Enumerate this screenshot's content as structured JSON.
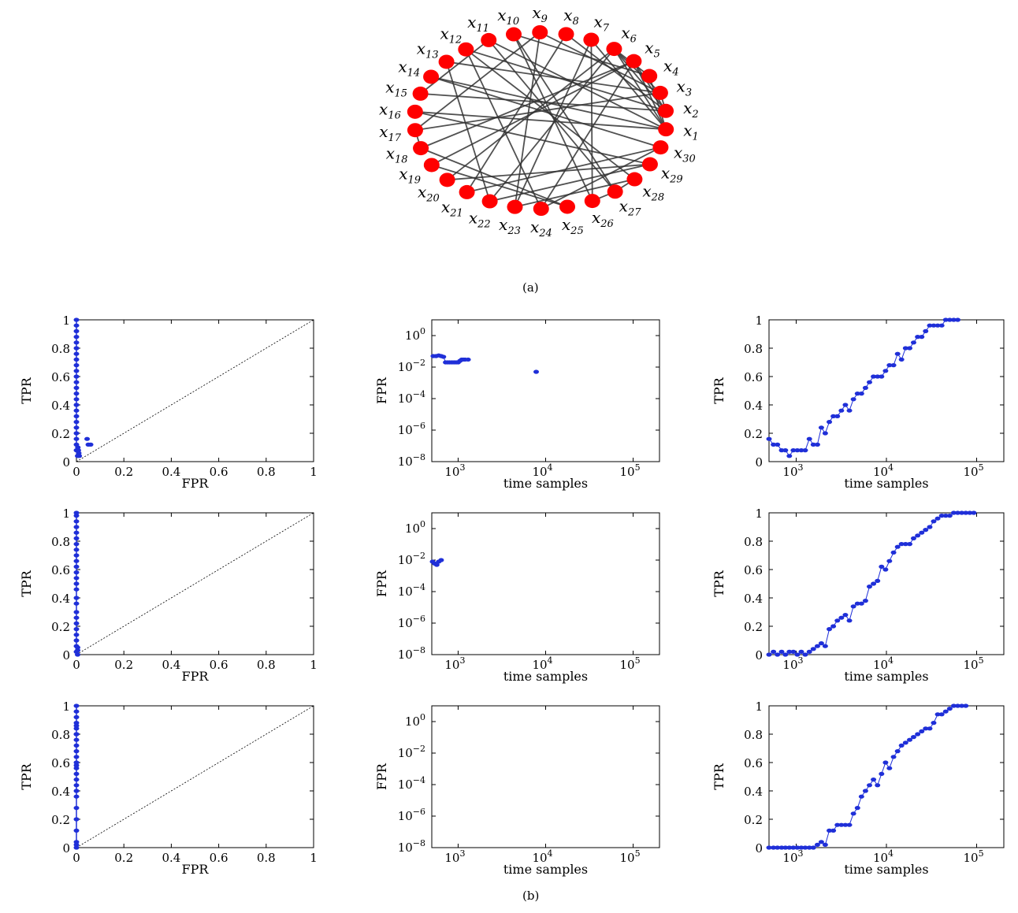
{
  "figure": {
    "caption_a": "(a)",
    "caption_b": "(b)"
  },
  "network": {
    "nodes": [
      "x1",
      "x2",
      "x3",
      "x4",
      "x5",
      "x6",
      "x7",
      "x8",
      "x9",
      "x10",
      "x11",
      "x12",
      "x13",
      "x14",
      "x15",
      "x16",
      "x17",
      "x18",
      "x19",
      "x20",
      "x21",
      "x22",
      "x23",
      "x24",
      "x25",
      "x26",
      "x27",
      "x28",
      "x29",
      "x30"
    ],
    "node_color": "#ff0000",
    "edge_color": "#333333",
    "edges": [
      [
        1,
        5
      ],
      [
        1,
        6
      ],
      [
        1,
        7
      ],
      [
        1,
        11
      ],
      [
        1,
        14
      ],
      [
        1,
        16
      ],
      [
        1,
        4
      ],
      [
        2,
        5
      ],
      [
        2,
        6
      ],
      [
        2,
        8
      ],
      [
        2,
        12
      ],
      [
        2,
        15
      ],
      [
        2,
        3
      ],
      [
        3,
        6
      ],
      [
        3,
        9
      ],
      [
        3,
        13
      ],
      [
        3,
        17
      ],
      [
        4,
        6
      ],
      [
        4,
        10
      ],
      [
        5,
        19
      ],
      [
        5,
        24
      ],
      [
        5,
        18
      ],
      [
        6,
        20
      ],
      [
        6,
        22
      ],
      [
        7,
        23
      ],
      [
        7,
        26
      ],
      [
        8,
        21
      ],
      [
        9,
        17
      ],
      [
        10,
        26
      ],
      [
        11,
        27
      ],
      [
        11,
        15
      ],
      [
        12,
        28
      ],
      [
        13,
        22
      ],
      [
        14,
        30
      ],
      [
        16,
        29
      ],
      [
        17,
        18
      ],
      [
        18,
        25
      ],
      [
        20,
        29
      ],
      [
        21,
        30
      ],
      [
        26,
        27
      ],
      [
        27,
        28
      ],
      [
        19,
        25
      ],
      [
        23,
        28
      ],
      [
        24,
        30
      ],
      [
        22,
        29
      ],
      [
        12,
        24
      ],
      [
        10,
        27
      ],
      [
        9,
        23
      ]
    ]
  },
  "chart_data": [
    {
      "type": "scatter",
      "row": 0,
      "col": 0,
      "xlabel": "FPR",
      "ylabel": "TPR",
      "xlim": [
        0,
        1
      ],
      "ylim": [
        0,
        1
      ],
      "xticks": [
        "0",
        "0.2",
        "0.4",
        "0.6",
        "0.8",
        "1"
      ],
      "yticks": [
        "0",
        "0.2",
        "0.4",
        "0.6",
        "0.8",
        "1"
      ],
      "diagonal": true,
      "x": [
        0,
        0,
        0,
        0,
        0,
        0,
        0,
        0,
        0,
        0,
        0,
        0,
        0,
        0,
        0,
        0,
        0,
        0,
        0,
        0,
        0,
        0,
        0,
        0,
        0.005,
        0.008,
        0.01,
        0.012,
        0.006,
        0.045,
        0.05,
        0.06
      ],
      "y": [
        1,
        0.96,
        0.92,
        0.88,
        0.84,
        0.8,
        0.76,
        0.72,
        0.68,
        0.64,
        0.6,
        0.56,
        0.52,
        0.48,
        0.44,
        0.4,
        0.36,
        0.32,
        0.28,
        0.24,
        0.2,
        0.16,
        0.12,
        0.08,
        0.04,
        0.08,
        0.06,
        0.04,
        0.1,
        0.16,
        0.12,
        0.12
      ]
    },
    {
      "type": "scatter",
      "row": 0,
      "col": 1,
      "xlabel": "time samples",
      "ylabel": "FPR",
      "xscale": "log",
      "yscale": "log",
      "xlim": [
        500,
        200000
      ],
      "ylim": [
        1e-08,
        10
      ],
      "xticks": [
        {
          "v": 1000,
          "e": "3"
        },
        {
          "v": 10000,
          "e": "4"
        },
        {
          "v": 100000,
          "e": "5"
        }
      ],
      "yticks": [
        {
          "v": 1,
          "e": "0"
        },
        {
          "v": 0.01,
          "e": "−2"
        },
        {
          "v": 0.0001,
          "e": "−4"
        },
        {
          "v": 1e-06,
          "e": "−6"
        },
        {
          "v": 1e-08,
          "e": "−8"
        }
      ],
      "x": [
        520,
        560,
        600,
        640,
        680,
        720,
        760,
        800,
        850,
        900,
        950,
        1000,
        1050,
        1100,
        1150,
        1200,
        1300,
        7800
      ],
      "y": [
        0.05,
        0.05,
        0.055,
        0.05,
        0.045,
        0.02,
        0.02,
        0.02,
        0.02,
        0.02,
        0.02,
        0.02,
        0.025,
        0.03,
        0.03,
        0.03,
        0.03,
        0.005
      ],
      "line_until": 16
    },
    {
      "type": "line",
      "row": 0,
      "col": 2,
      "xlabel": "time samples",
      "ylabel": "TPR",
      "xscale": "log",
      "xlim": [
        500,
        200000
      ],
      "ylim": [
        0,
        1
      ],
      "xticks": [
        {
          "v": 1000,
          "e": "3"
        },
        {
          "v": 10000,
          "e": "4"
        },
        {
          "v": 100000,
          "e": "5"
        }
      ],
      "yticks": [
        "0",
        "0.2",
        "0.4",
        "0.6",
        "0.8",
        "1"
      ],
      "x": [
        500,
        560,
        620,
        690,
        760,
        840,
        930,
        1030,
        1140,
        1260,
        1400,
        1550,
        1720,
        1900,
        2100,
        2330,
        2580,
        2860,
        3170,
        3510,
        3890,
        4310,
        4780,
        5290,
        5860,
        6490,
        7190,
        7970,
        8830,
        9780,
        10800,
        12000,
        13300,
        14700,
        16300,
        18100,
        20000,
        22200,
        24600,
        27200,
        30200,
        33400,
        37000,
        41000,
        45400,
        50300,
        55700,
        61700
      ],
      "y": [
        0.16,
        0.12,
        0.12,
        0.08,
        0.08,
        0.04,
        0.08,
        0.08,
        0.08,
        0.08,
        0.16,
        0.12,
        0.12,
        0.24,
        0.2,
        0.28,
        0.32,
        0.32,
        0.36,
        0.4,
        0.36,
        0.44,
        0.48,
        0.48,
        0.52,
        0.56,
        0.6,
        0.6,
        0.6,
        0.64,
        0.68,
        0.68,
        0.76,
        0.72,
        0.8,
        0.8,
        0.84,
        0.88,
        0.88,
        0.92,
        0.96,
        0.96,
        0.96,
        0.96,
        1,
        1,
        1,
        1
      ]
    },
    {
      "type": "scatter",
      "row": 1,
      "col": 0,
      "xlabel": "FPR",
      "ylabel": "TPR",
      "xlim": [
        0,
        1
      ],
      "ylim": [
        0,
        1
      ],
      "xticks": [
        "0",
        "0.2",
        "0.4",
        "0.6",
        "0.8",
        "1"
      ],
      "yticks": [
        "0",
        "0.2",
        "0.4",
        "0.6",
        "0.8",
        "1"
      ],
      "diagonal": true,
      "x": [
        0,
        0,
        0,
        0,
        0,
        0,
        0,
        0,
        0,
        0,
        0,
        0,
        0,
        0,
        0,
        0,
        0,
        0,
        0,
        0,
        0,
        0,
        0,
        0,
        0,
        0.005,
        0.005,
        0.005
      ],
      "y": [
        1,
        0.98,
        0.94,
        0.9,
        0.86,
        0.82,
        0.78,
        0.74,
        0.7,
        0.66,
        0.62,
        0.58,
        0.54,
        0.5,
        0.46,
        0.4,
        0.36,
        0.3,
        0.26,
        0.22,
        0.18,
        0.14,
        0.1,
        0.06,
        0.02,
        0,
        0.03,
        0.05
      ]
    },
    {
      "type": "scatter",
      "row": 1,
      "col": 1,
      "xlabel": "time samples",
      "ylabel": "FPR",
      "xscale": "log",
      "yscale": "log",
      "xlim": [
        500,
        200000
      ],
      "ylim": [
        1e-08,
        10
      ],
      "xticks": [
        {
          "v": 1000,
          "e": "3"
        },
        {
          "v": 10000,
          "e": "4"
        },
        {
          "v": 100000,
          "e": "5"
        }
      ],
      "yticks": [
        {
          "v": 1,
          "e": "0"
        },
        {
          "v": 0.01,
          "e": "−2"
        },
        {
          "v": 0.0001,
          "e": "−4"
        },
        {
          "v": 1e-06,
          "e": "−6"
        },
        {
          "v": 1e-08,
          "e": "−8"
        }
      ],
      "x": [
        510,
        540,
        570,
        600,
        640
      ],
      "y": [
        0.008,
        0.006,
        0.005,
        0.008,
        0.01
      ],
      "line_until": 4
    },
    {
      "type": "line",
      "row": 1,
      "col": 2,
      "xlabel": "time samples",
      "ylabel": "TPR",
      "xscale": "log",
      "xlim": [
        500,
        200000
      ],
      "ylim": [
        0,
        1
      ],
      "xticks": [
        {
          "v": 1000,
          "e": "3"
        },
        {
          "v": 10000,
          "e": "4"
        },
        {
          "v": 100000,
          "e": "5"
        }
      ],
      "yticks": [
        "0",
        "0.2",
        "0.4",
        "0.6",
        "0.8",
        "1"
      ],
      "x": [
        500,
        560,
        620,
        690,
        760,
        840,
        930,
        1030,
        1140,
        1260,
        1400,
        1550,
        1720,
        1900,
        2100,
        2330,
        2580,
        2860,
        3170,
        3510,
        3890,
        4310,
        4780,
        5290,
        5860,
        6490,
        7190,
        7970,
        8830,
        9780,
        10800,
        12000,
        13300,
        14700,
        16300,
        18100,
        20000,
        22200,
        24600,
        27200,
        30200,
        33400,
        37000,
        41000,
        45400,
        50300,
        55700,
        61700,
        68400,
        75800,
        84000,
        93000
      ],
      "y": [
        0,
        0.02,
        0,
        0.02,
        0,
        0.02,
        0.02,
        0,
        0.02,
        0,
        0.02,
        0.04,
        0.06,
        0.08,
        0.06,
        0.18,
        0.2,
        0.24,
        0.26,
        0.28,
        0.24,
        0.34,
        0.36,
        0.36,
        0.38,
        0.48,
        0.5,
        0.52,
        0.62,
        0.6,
        0.66,
        0.72,
        0.76,
        0.78,
        0.78,
        0.78,
        0.82,
        0.84,
        0.86,
        0.88,
        0.9,
        0.94,
        0.96,
        0.98,
        0.98,
        0.98,
        1,
        1,
        1,
        1,
        1,
        1
      ]
    },
    {
      "type": "scatter",
      "row": 2,
      "col": 0,
      "xlabel": "FPR",
      "ylabel": "TPR",
      "xlim": [
        0,
        1
      ],
      "ylim": [
        0,
        1
      ],
      "xticks": [
        "0",
        "0.2",
        "0.4",
        "0.6",
        "0.8",
        "1"
      ],
      "yticks": [
        "0",
        "0.2",
        "0.4",
        "0.6",
        "0.8",
        "1"
      ],
      "diagonal": true,
      "x": [
        0,
        0,
        0,
        0,
        0,
        0,
        0,
        0,
        0,
        0,
        0,
        0,
        0,
        0,
        0,
        0,
        0,
        0,
        0,
        0,
        0,
        0,
        0,
        0,
        0,
        0
      ],
      "y": [
        1,
        0.96,
        0.92,
        0.88,
        0.84,
        0.8,
        0.76,
        0.72,
        0.68,
        0.64,
        0.6,
        0.56,
        0.52,
        0.48,
        0.44,
        0.4,
        0.36,
        0.28,
        0.2,
        0.12,
        0.04,
        0.02,
        0,
        0.86,
        0.8,
        0.58
      ]
    },
    {
      "type": "scatter",
      "row": 2,
      "col": 1,
      "xlabel": "time samples",
      "ylabel": "FPR",
      "xscale": "log",
      "yscale": "log",
      "xlim": [
        500,
        200000
      ],
      "ylim": [
        1e-08,
        10
      ],
      "xticks": [
        {
          "v": 1000,
          "e": "3"
        },
        {
          "v": 10000,
          "e": "4"
        },
        {
          "v": 100000,
          "e": "5"
        }
      ],
      "yticks": [
        {
          "v": 1,
          "e": "0"
        },
        {
          "v": 0.01,
          "e": "−2"
        },
        {
          "v": 0.0001,
          "e": "−4"
        },
        {
          "v": 1e-06,
          "e": "−6"
        },
        {
          "v": 1e-08,
          "e": "−8"
        }
      ],
      "x": [],
      "y": [],
      "line_until": 0
    },
    {
      "type": "line",
      "row": 2,
      "col": 2,
      "xlabel": "time samples",
      "ylabel": "TPR",
      "xscale": "log",
      "xlim": [
        500,
        200000
      ],
      "ylim": [
        0,
        1
      ],
      "xticks": [
        {
          "v": 1000,
          "e": "3"
        },
        {
          "v": 10000,
          "e": "4"
        },
        {
          "v": 100000,
          "e": "5"
        }
      ],
      "yticks": [
        "0",
        "0.2",
        "0.4",
        "0.6",
        "0.8",
        "1"
      ],
      "x": [
        500,
        560,
        620,
        690,
        760,
        840,
        930,
        1030,
        1140,
        1260,
        1400,
        1550,
        1720,
        1900,
        2100,
        2330,
        2580,
        2860,
        3170,
        3510,
        3890,
        4310,
        4780,
        5290,
        5860,
        6490,
        7190,
        7970,
        8830,
        9780,
        10800,
        12000,
        13300,
        14700,
        16300,
        18100,
        20000,
        22200,
        24600,
        27200,
        30200,
        33400,
        37000,
        41000,
        45400,
        50300,
        55700,
        61700,
        68400,
        75800
      ],
      "y": [
        0,
        0,
        0,
        0,
        0,
        0,
        0,
        0,
        0,
        0,
        0,
        0,
        0.02,
        0.04,
        0.02,
        0.12,
        0.12,
        0.16,
        0.16,
        0.16,
        0.16,
        0.24,
        0.28,
        0.36,
        0.4,
        0.44,
        0.48,
        0.44,
        0.52,
        0.6,
        0.56,
        0.64,
        0.68,
        0.72,
        0.74,
        0.76,
        0.78,
        0.8,
        0.82,
        0.84,
        0.84,
        0.88,
        0.94,
        0.94,
        0.96,
        0.98,
        1,
        1,
        1,
        1
      ]
    }
  ]
}
